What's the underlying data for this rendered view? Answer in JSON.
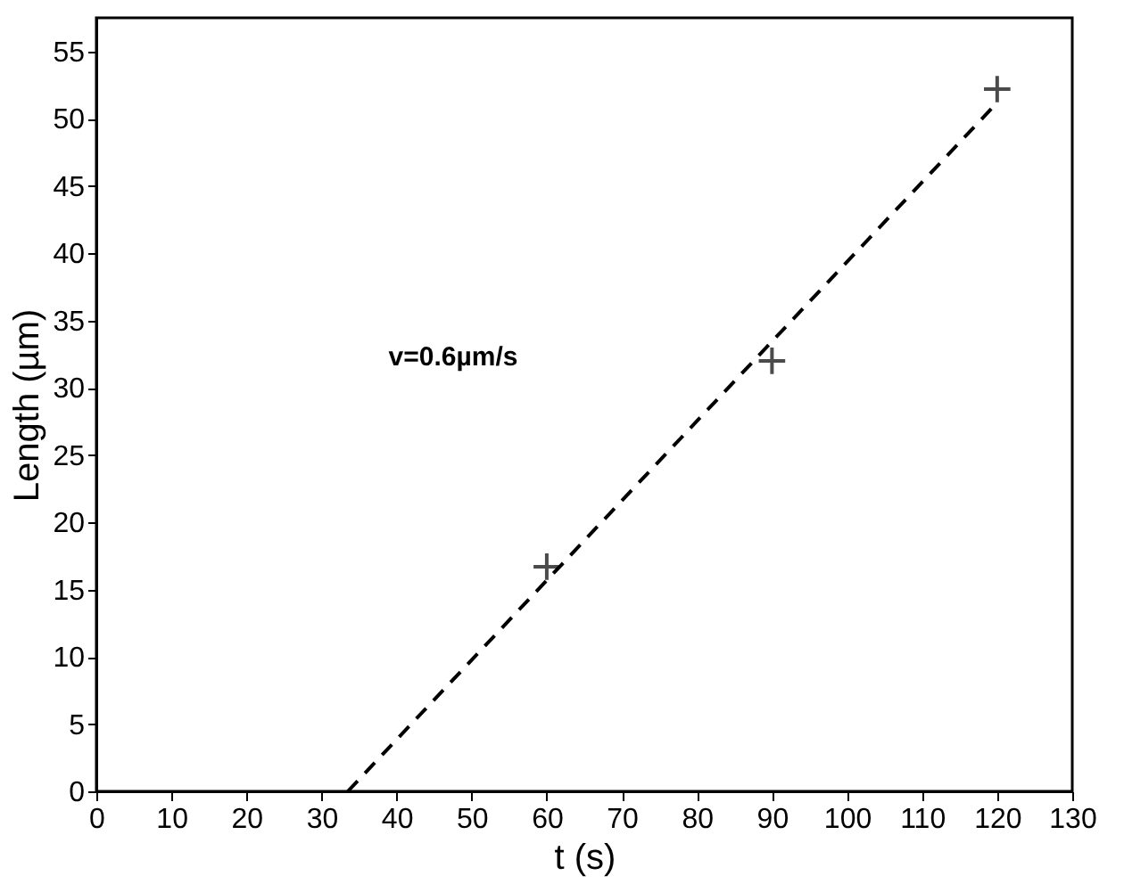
{
  "chart_data": {
    "type": "scatter",
    "xlabel": "t (s)",
    "ylabel": "Length (µm)",
    "xlim": [
      0,
      130
    ],
    "xticks": [
      0,
      10,
      20,
      30,
      40,
      50,
      60,
      70,
      80,
      90,
      100,
      110,
      120,
      130
    ],
    "ylim": [
      0,
      57.5
    ],
    "yticks": [
      0,
      5,
      10,
      15,
      20,
      25,
      30,
      35,
      40,
      45,
      50,
      55
    ],
    "grid": false,
    "legend": false,
    "series": [
      {
        "color": "#000000",
        "marker": "cross",
        "x": [
          60,
          90,
          120
        ],
        "values": [
          16.7,
          32.0,
          52.2
        ]
      },
      {
        "type": "line",
        "color": "#000000",
        "line_style": "dashed",
        "x": [
          33.5,
          120
        ],
        "values": [
          0,
          51.2
        ]
      }
    ],
    "annotations": [
      "v=0.6µm/s"
    ]
  }
}
